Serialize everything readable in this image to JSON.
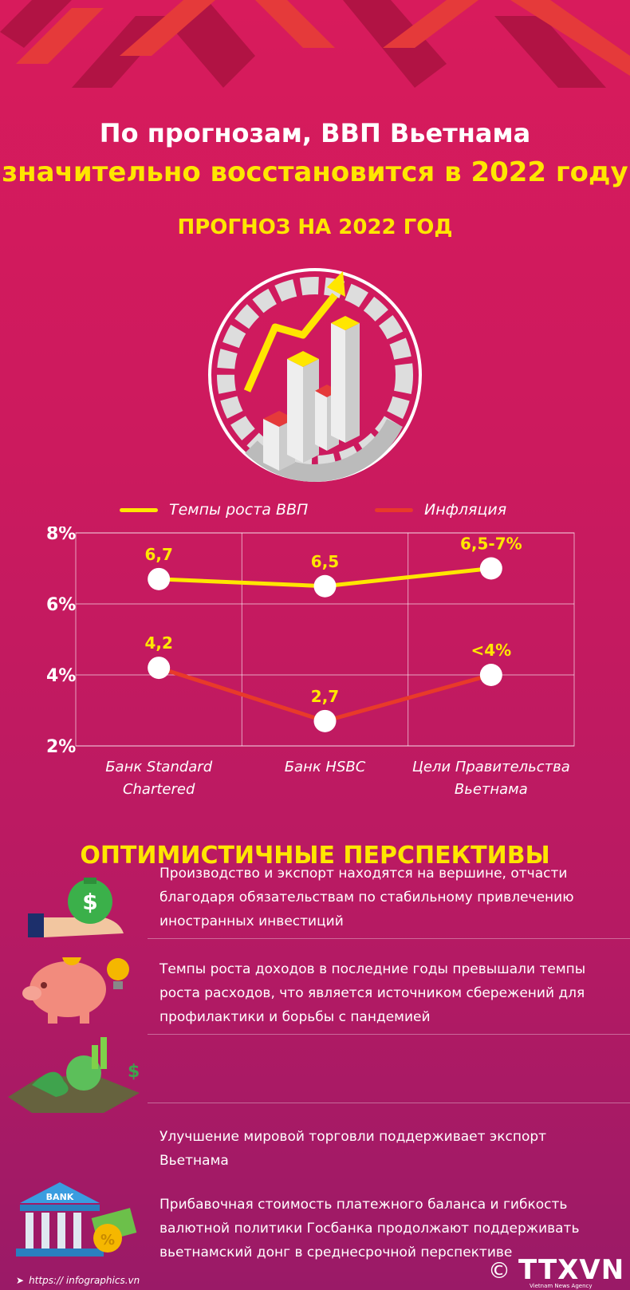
{
  "header": {
    "title_line1": "По прогнозам, ВВП Вьетнама",
    "title_line2": "значительно восстановится в 2022 году",
    "subtitle": "ПРОГНОЗ НА 2022 ГОД"
  },
  "legend": {
    "gdp": "Темпы роста ВВП",
    "inflation": "Инфляция"
  },
  "colors": {
    "gdp": "#ffe600",
    "inflation": "#e83a2a",
    "accent": "#ffe600"
  },
  "chart_data": {
    "type": "line",
    "categories": [
      "Банк Standard Chartered",
      "Банк HSBC",
      "Цели Правительства Вьетнама"
    ],
    "category_lines": [
      [
        "Банк Standard",
        "Chartered"
      ],
      [
        "Банк HSBC"
      ],
      [
        "Цели Правительства",
        "Вьетнама"
      ]
    ],
    "yticks": [
      "8%",
      "6%",
      "4%",
      "2%"
    ],
    "ylim": [
      2,
      8
    ],
    "series": [
      {
        "name": "Темпы роста ВВП",
        "values": [
          6.7,
          6.5,
          7
        ],
        "labels": [
          "6,7",
          "6,5",
          "6,5-7%"
        ]
      },
      {
        "name": "Инфляция",
        "values": [
          4.2,
          2.7,
          4
        ],
        "labels": [
          "4,2",
          "2,7",
          "<4%"
        ]
      }
    ],
    "grid": true
  },
  "section": {
    "title": "ОПТИМИСТИЧНЫЕ ПЕРСПЕКТИВЫ"
  },
  "items": [
    {
      "icon": "money-bag-hand-icon",
      "lines": [
        "Производство и экспорт находятся на вершине, отчасти",
        "благодаря обязательствам по стабильному привлечению",
        "иностранных инвестиций"
      ]
    },
    {
      "icon": "piggy-bank-icon",
      "lines": [
        "Темпы роста доходов в последние годы превышали темпы",
        "роста расходов, что является источником сбережений для",
        "профилактики и борьбы с пандемией"
      ]
    },
    {
      "icon": "globe-trade-icon",
      "lines": [
        "Улучшение мировой торговли поддерживает экспорт",
        "Вьетнама"
      ]
    },
    {
      "icon": "bank-building-icon",
      "bank_label": "BANK",
      "lines": [
        "Прибавочная стоимость платежного баланса и гибкость",
        "валютной политики Госбанка продолжают поддерживать",
        "вьетнамский донг в среднесрочной перспективе"
      ]
    }
  ],
  "footer": {
    "copyright": "©",
    "logo": "TTXVN",
    "logo_sub": "Vietnam News Agency",
    "url": "https:// infographics.vn"
  }
}
